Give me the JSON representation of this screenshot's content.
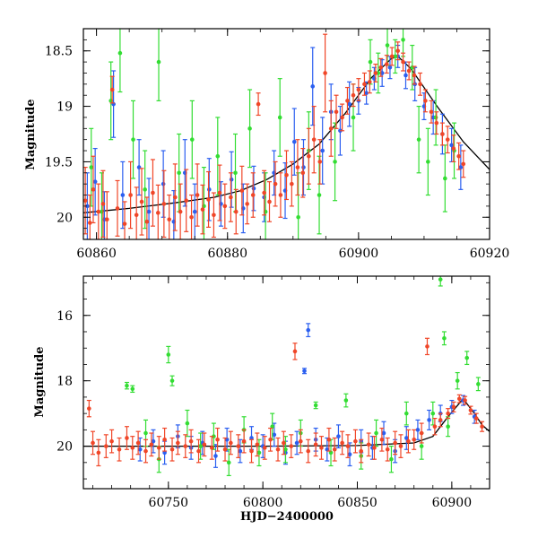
{
  "chart_data": [
    {
      "type": "scatter",
      "title": "",
      "xlabel": "",
      "ylabel": "Magnitude",
      "xlim": [
        60858,
        60920
      ],
      "ylim": [
        20.2,
        18.3
      ],
      "y_inverted": true,
      "grid": false,
      "legend": "none",
      "xticks": [
        {
          "value": 60860,
          "label": "60860"
        },
        {
          "value": 60880,
          "label": "60880"
        },
        {
          "value": 60900,
          "label": "60900"
        },
        {
          "value": 60920,
          "label": "60920"
        }
      ],
      "yticks": [
        {
          "value": 18.5,
          "label": "18.5"
        },
        {
          "value": 19.0,
          "label": "19"
        },
        {
          "value": 19.5,
          "label": "19.5"
        },
        {
          "value": 20.0,
          "label": "20"
        }
      ],
      "model_curve": {
        "color": "#000000",
        "x": [
          60858,
          60865,
          60872,
          60878,
          60882,
          60886,
          60890,
          60894,
          60898,
          60902,
          60905,
          60906,
          60908,
          60912,
          60916,
          60920
        ],
        "y": [
          19.96,
          19.92,
          19.87,
          19.82,
          19.76,
          19.66,
          19.52,
          19.34,
          19.06,
          18.74,
          18.57,
          18.55,
          18.66,
          19.0,
          19.32,
          19.57
        ]
      },
      "series": [
        {
          "color": "#2b5ff0",
          "x": [
            60858.6,
            60859.8,
            60861.2,
            60862.6,
            60864.0,
            60866.5,
            60868.0,
            60870.2,
            60871.8,
            60873.5,
            60875.0,
            60877.2,
            60879.0,
            60880.6,
            60882.4,
            60884.0,
            60885.6,
            60887.1,
            60888.8,
            60890.2,
            60891.6,
            60893.0,
            60894.5,
            60895.8,
            60897.2,
            60898.6,
            60900.0,
            60901.2,
            60902.4,
            60903.6,
            60904.8,
            60906.0,
            60907.2,
            60908.6,
            60910.0,
            60911.4,
            60912.8,
            60914.2,
            60915.6
          ],
          "y": [
            19.9,
            19.68,
            20.02,
            18.98,
            19.8,
            19.55,
            19.95,
            19.7,
            20.04,
            19.6,
            19.95,
            19.75,
            19.88,
            19.66,
            19.92,
            19.74,
            19.82,
            19.6,
            19.76,
            19.32,
            19.55,
            18.82,
            19.4,
            19.05,
            19.22,
            18.98,
            18.95,
            18.88,
            18.75,
            18.7,
            18.65,
            18.55,
            18.72,
            18.8,
            19.0,
            19.1,
            19.25,
            19.35,
            19.55
          ],
          "err": [
            0.3,
            0.3,
            0.25,
            0.3,
            0.3,
            0.25,
            0.3,
            0.3,
            0.28,
            0.3,
            0.25,
            0.28,
            0.2,
            0.25,
            0.22,
            0.2,
            0.22,
            0.2,
            0.25,
            0.3,
            0.25,
            0.35,
            0.3,
            0.25,
            0.22,
            0.2,
            0.12,
            0.1,
            0.1,
            0.12,
            0.1,
            0.1,
            0.12,
            0.15,
            0.12,
            0.15,
            0.18,
            0.15,
            0.2
          ]
        },
        {
          "color": "#33dd33",
          "x": [
            60859.2,
            60860.8,
            60862.2,
            60863.6,
            60865.6,
            60867.4,
            60869.5,
            60872.6,
            60874.6,
            60876.4,
            60878.5,
            60881.2,
            60883.4,
            60885.8,
            60888.0,
            60890.8,
            60892.4,
            60894.0,
            60896.4,
            60899.2,
            60901.8,
            60903.0,
            60904.4,
            60905.6,
            60906.8,
            60908.2,
            60909.2,
            60910.6,
            60911.8,
            60913.2,
            60914.6
          ],
          "y": [
            19.55,
            19.95,
            18.95,
            18.52,
            19.3,
            19.75,
            18.6,
            19.6,
            19.3,
            19.9,
            19.45,
            19.6,
            19.2,
            19.95,
            19.1,
            20.0,
            19.4,
            19.8,
            19.5,
            19.1,
            18.6,
            18.7,
            18.45,
            18.55,
            18.4,
            18.65,
            19.3,
            19.5,
            19.1,
            19.65,
            19.4
          ],
          "err": [
            0.35,
            0.35,
            0.35,
            0.35,
            0.35,
            0.35,
            0.35,
            0.35,
            0.35,
            0.35,
            0.35,
            0.35,
            0.35,
            0.35,
            0.35,
            0.4,
            0.35,
            0.35,
            0.35,
            0.3,
            0.2,
            0.18,
            0.18,
            0.15,
            0.15,
            0.2,
            0.3,
            0.3,
            0.25,
            0.3,
            0.25
          ]
        },
        {
          "color": "#f04628",
          "x": [
            60858.3,
            60859.0,
            60859.5,
            60860.3,
            60861.0,
            60861.6,
            60862.4,
            60863.2,
            60864.3,
            60865.2,
            60866.1,
            60866.9,
            60867.7,
            60868.6,
            60869.4,
            60870.3,
            60871.1,
            60872.0,
            60872.8,
            60873.7,
            60874.5,
            60875.4,
            60876.2,
            60877.1,
            60877.9,
            60878.8,
            60879.6,
            60880.5,
            60881.3,
            60882.2,
            60883.0,
            60883.9,
            60884.7,
            60885.6,
            60886.4,
            60887.3,
            60888.1,
            60889.0,
            60889.8,
            60890.7,
            60891.5,
            60892.4,
            60893.2,
            60894.1,
            60894.9,
            60895.8,
            60896.6,
            60897.5,
            60898.3,
            60899.2,
            60900.0,
            60900.9,
            60901.7,
            60902.6,
            60903.4,
            60904.3,
            60905.1,
            60906.0,
            60906.8,
            60907.7,
            60908.5,
            60909.4,
            60910.2,
            60911.1,
            60911.9,
            60912.8,
            60913.6,
            60914.5,
            60915.3,
            60916.0
          ],
          "y": [
            19.85,
            20.05,
            19.75,
            19.95,
            19.88,
            20.02,
            18.85,
            19.92,
            20.06,
            19.8,
            19.98,
            19.86,
            20.04,
            19.78,
            19.96,
            19.88,
            20.02,
            19.82,
            19.95,
            19.85,
            20.0,
            19.8,
            19.93,
            19.84,
            19.98,
            19.78,
            19.9,
            19.82,
            19.95,
            19.76,
            19.88,
            19.8,
            18.98,
            19.78,
            19.86,
            19.7,
            19.8,
            19.62,
            19.7,
            19.55,
            19.6,
            19.45,
            19.3,
            19.5,
            18.7,
            19.2,
            19.05,
            19.1,
            18.95,
            18.9,
            18.85,
            18.8,
            18.78,
            18.7,
            18.65,
            18.62,
            18.55,
            18.5,
            18.6,
            18.68,
            18.72,
            18.8,
            18.95,
            19.05,
            19.15,
            19.25,
            19.3,
            19.38,
            19.45,
            19.52
          ],
          "err": [
            0.3,
            0.25,
            0.3,
            0.25,
            0.3,
            0.25,
            0.12,
            0.25,
            0.2,
            0.3,
            0.25,
            0.3,
            0.22,
            0.3,
            0.25,
            0.3,
            0.22,
            0.3,
            0.25,
            0.28,
            0.2,
            0.28,
            0.22,
            0.25,
            0.2,
            0.25,
            0.2,
            0.22,
            0.2,
            0.22,
            0.18,
            0.2,
            0.1,
            0.2,
            0.18,
            0.2,
            0.2,
            0.22,
            0.2,
            0.25,
            0.22,
            0.25,
            0.3,
            0.2,
            0.35,
            0.25,
            0.15,
            0.12,
            0.12,
            0.1,
            0.1,
            0.1,
            0.1,
            0.08,
            0.08,
            0.08,
            0.08,
            0.08,
            0.08,
            0.08,
            0.08,
            0.1,
            0.1,
            0.1,
            0.1,
            0.1,
            0.12,
            0.12,
            0.12,
            0.12
          ]
        }
      ]
    },
    {
      "type": "scatter",
      "title": "",
      "xlabel": "HJD−2400000",
      "ylabel": "Magnitude",
      "xlim": [
        60705,
        60920
      ],
      "ylim": [
        21.3,
        14.8
      ],
      "y_inverted": true,
      "grid": false,
      "legend": "none",
      "xticks": [
        {
          "value": 60750,
          "label": "60750"
        },
        {
          "value": 60800,
          "label": "60800"
        },
        {
          "value": 60850,
          "label": "60850"
        },
        {
          "value": 60900,
          "label": "60900"
        }
      ],
      "yticks": [
        {
          "value": 16,
          "label": "16"
        },
        {
          "value": 18,
          "label": "18"
        },
        {
          "value": 20,
          "label": "20"
        }
      ],
      "model_curve": {
        "color": "#000000",
        "x": [
          60705,
          60750,
          60800,
          60850,
          60880,
          60890,
          60898,
          60906,
          60912,
          60916,
          60920
        ],
        "y": [
          20.0,
          20.0,
          20.0,
          19.98,
          19.9,
          19.7,
          19.1,
          18.55,
          19.0,
          19.35,
          19.55
        ]
      },
      "series": [
        {
          "color": "#2b5ff0",
          "x": [
            60735,
            60742,
            60748,
            60755,
            60762,
            60768,
            60775,
            60781,
            60788,
            60794,
            60800,
            60806,
            60812,
            60818,
            60822,
            60824,
            60828,
            60834,
            60840,
            60846,
            60852,
            60858,
            60864,
            60870,
            60876,
            60882,
            60888,
            60894,
            60900,
            60906,
            60912
          ],
          "y": [
            20.1,
            19.85,
            20.2,
            19.7,
            20.05,
            19.9,
            20.3,
            19.8,
            20.15,
            19.75,
            20.0,
            19.65,
            20.2,
            19.9,
            17.7,
            16.45,
            19.8,
            20.1,
            19.7,
            20.25,
            19.85,
            20.05,
            19.6,
            20.15,
            19.75,
            19.5,
            19.2,
            19.0,
            18.8,
            18.6,
            19.1
          ],
          "err": [
            0.35,
            0.35,
            0.35,
            0.35,
            0.35,
            0.35,
            0.35,
            0.35,
            0.35,
            0.35,
            0.35,
            0.35,
            0.35,
            0.35,
            0.08,
            0.2,
            0.35,
            0.35,
            0.35,
            0.35,
            0.35,
            0.35,
            0.35,
            0.35,
            0.35,
            0.3,
            0.3,
            0.25,
            0.2,
            0.15,
            0.2
          ]
        },
        {
          "color": "#33dd33",
          "x": [
            60728,
            60731,
            60738,
            60745,
            60750,
            60752,
            60760,
            60767,
            60774,
            60782,
            60790,
            60798,
            60805,
            60812,
            60820,
            60828,
            60836,
            60844,
            60852,
            60860,
            60868,
            60876,
            60884,
            60890,
            60894,
            60896,
            60898,
            60903,
            60908,
            60914
          ],
          "y": [
            18.15,
            18.25,
            19.6,
            20.4,
            17.2,
            18.0,
            19.3,
            20.0,
            19.7,
            20.5,
            19.5,
            20.2,
            19.4,
            20.1,
            19.6,
            18.75,
            20.2,
            18.6,
            20.3,
            19.6,
            20.4,
            19.0,
            20.0,
            19.0,
            14.9,
            16.7,
            19.4,
            18.0,
            17.3,
            18.1
          ],
          "err": [
            0.1,
            0.1,
            0.4,
            0.4,
            0.25,
            0.15,
            0.4,
            0.4,
            0.4,
            0.4,
            0.4,
            0.4,
            0.4,
            0.4,
            0.4,
            0.1,
            0.4,
            0.2,
            0.4,
            0.4,
            0.4,
            0.35,
            0.4,
            0.35,
            0.2,
            0.2,
            0.3,
            0.25,
            0.2,
            0.2
          ]
        },
        {
          "color": "#f04628",
          "x": [
            60708,
            60710,
            60713,
            60717,
            60720,
            60724,
            60728,
            60731,
            60734,
            60738,
            60741,
            60745,
            60748,
            60752,
            60755,
            60759,
            60762,
            60766,
            60769,
            60773,
            60776,
            60780,
            60783,
            60787,
            60790,
            60794,
            60797,
            60801,
            60804,
            60808,
            60811,
            60815,
            60817,
            60820,
            60824,
            60828,
            60831,
            60835,
            60838,
            60842,
            60845,
            60849,
            60852,
            60856,
            60859,
            60863,
            60866,
            60870,
            60873,
            60877,
            60880,
            60884,
            60887,
            60891,
            60894,
            60898,
            60901,
            60904,
            60907,
            60910,
            60913,
            60916
          ],
          "y": [
            18.85,
            19.9,
            20.2,
            20.0,
            19.85,
            20.1,
            19.75,
            20.05,
            19.9,
            20.15,
            19.95,
            20.05,
            19.8,
            20.1,
            19.9,
            20.0,
            19.85,
            20.15,
            19.95,
            20.05,
            19.8,
            20.1,
            19.9,
            20.0,
            19.85,
            20.15,
            19.95,
            20.05,
            19.8,
            20.1,
            19.9,
            20.0,
            17.1,
            19.85,
            20.15,
            19.95,
            20.05,
            19.8,
            20.1,
            19.9,
            20.0,
            19.85,
            20.15,
            19.95,
            20.05,
            19.8,
            20.1,
            19.9,
            20.0,
            19.85,
            19.8,
            19.6,
            16.95,
            19.4,
            19.2,
            19.0,
            18.8,
            18.55,
            18.6,
            18.9,
            19.15,
            19.4
          ],
          "err": [
            0.25,
            0.35,
            0.4,
            0.35,
            0.35,
            0.35,
            0.35,
            0.35,
            0.35,
            0.35,
            0.35,
            0.35,
            0.35,
            0.35,
            0.35,
            0.35,
            0.35,
            0.35,
            0.35,
            0.35,
            0.35,
            0.35,
            0.35,
            0.35,
            0.35,
            0.35,
            0.35,
            0.35,
            0.35,
            0.35,
            0.35,
            0.35,
            0.25,
            0.35,
            0.35,
            0.35,
            0.35,
            0.35,
            0.35,
            0.35,
            0.35,
            0.35,
            0.35,
            0.35,
            0.35,
            0.35,
            0.35,
            0.35,
            0.35,
            0.35,
            0.3,
            0.3,
            0.25,
            0.25,
            0.2,
            0.15,
            0.15,
            0.12,
            0.12,
            0.12,
            0.15,
            0.15
          ]
        }
      ]
    }
  ]
}
